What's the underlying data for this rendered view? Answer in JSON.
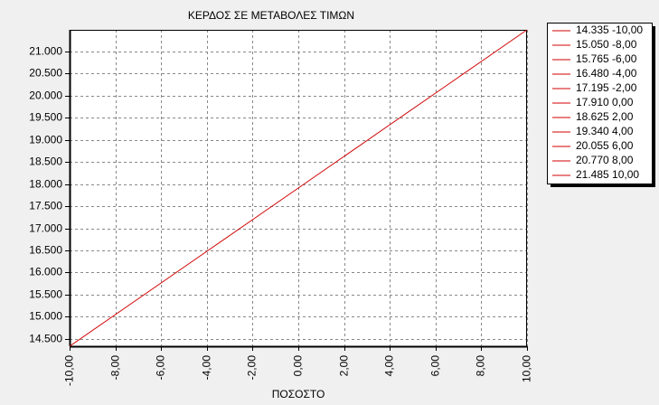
{
  "chart_data": {
    "type": "line",
    "title": "ΚΕΡΔΟΣ ΣΕ ΜΕΤΑΒΟΛΕΣ ΤΙΜΩΝ",
    "x_label": "ΠΟΣΟΣΤΟ",
    "x": [
      -10,
      -8,
      -6,
      -4,
      -2,
      0,
      2,
      4,
      6,
      8,
      10
    ],
    "series": [
      {
        "color": "#d00000",
        "values": [
          14335,
          15050,
          15765,
          16480,
          17195,
          17910,
          18625,
          19340,
          20055,
          20770,
          21485
        ]
      }
    ],
    "legend": [
      "14.335 -10,00",
      "15.050 -8,00",
      "15.765 -6,00",
      "16.480 -4,00",
      "17.195 -2,00",
      "17.910 0,00",
      "18.625 2,00",
      "19.340 4,00",
      "20.055 6,00",
      "20.770 8,00",
      "21.485 10,00"
    ],
    "xlim": [
      -10,
      10
    ],
    "ylim": [
      14335,
      21485
    ],
    "xticks": [
      {
        "value": -10,
        "label": "-10,00"
      },
      {
        "value": -8,
        "label": "-8,00"
      },
      {
        "value": -6,
        "label": "-6,00"
      },
      {
        "value": -4,
        "label": "-4,00"
      },
      {
        "value": -2,
        "label": "-2,00"
      },
      {
        "value": 0,
        "label": "0,00"
      },
      {
        "value": 2,
        "label": "2,00"
      },
      {
        "value": 4,
        "label": "4,00"
      },
      {
        "value": 6,
        "label": "6,00"
      },
      {
        "value": 8,
        "label": "8,00"
      },
      {
        "value": 10,
        "label": "10,00"
      }
    ],
    "yticks": [
      {
        "value": 14500,
        "label": "14.500"
      },
      {
        "value": 15000,
        "label": "15.000"
      },
      {
        "value": 15500,
        "label": "15.500"
      },
      {
        "value": 16000,
        "label": "16.000"
      },
      {
        "value": 16500,
        "label": "16.500"
      },
      {
        "value": 17000,
        "label": "17.000"
      },
      {
        "value": 17500,
        "label": "17.500"
      },
      {
        "value": 18000,
        "label": "18.000"
      },
      {
        "value": 18500,
        "label": "18.500"
      },
      {
        "value": 19000,
        "label": "19.000"
      },
      {
        "value": 19500,
        "label": "19.500"
      },
      {
        "value": 20000,
        "label": "20.000"
      },
      {
        "value": 20500,
        "label": "20.500"
      },
      {
        "value": 21000,
        "label": "21.000"
      }
    ],
    "grid": true
  }
}
